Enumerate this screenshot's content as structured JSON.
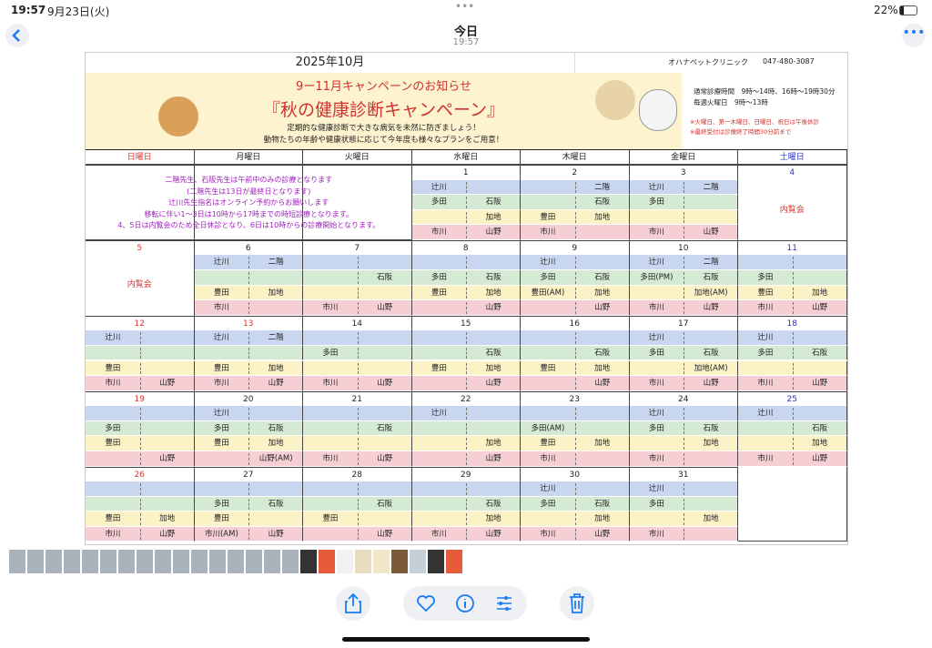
{
  "status_bar": {
    "time": "19:57",
    "date": "9月23日(火)",
    "battery": "22%"
  },
  "header": {
    "title": "今日",
    "time": "19:57"
  },
  "calendar": {
    "month": "2025年10月",
    "clinic": "オハナペットクリニック",
    "phone": "047-480-3087",
    "banner": {
      "headline": "9ー11月キャンペーンのお知らせ",
      "title": "『秋の健康診断キャンペーン』",
      "lines": [
        "定期的な健康診断で大きな病気を未然に防ぎましょう！",
        "動物たちの年齢や健康状態に応じて今年度も様々なプランをご用意！"
      ]
    },
    "hours": [
      "通常診療時間　9時〜14時、16時〜19時30分",
      "毎週火曜日　9時〜13時"
    ],
    "hour_notes": [
      "※火曜日、第一木曜日、日曜日、祝日は午後休診",
      "※最終受付は診療終了時間30分前まで"
    ],
    "weekdays": [
      "日曜日",
      "月曜日",
      "火曜日",
      "水曜日",
      "木曜日",
      "金曜日",
      "土曜日"
    ],
    "weekday_colors": [
      "#e0302c",
      "#222222",
      "#222222",
      "#222222",
      "#222222",
      "#222222",
      "#2a33c8"
    ],
    "slot_colors": [
      "#c8d6f0",
      "#d4ead2",
      "#fbf2c6",
      "#f5cfd3"
    ],
    "notice": [
      "二階先生、石阪先生は午前中のみの診療となります",
      "(二階先生は13日が最終日となります)",
      "辻川先生指名はオンライン予約からお願いします",
      "移転に伴い1〜3日は10時から17時までの時短診療となります。",
      "4、5日は内覧会のため全日休診となり、6日は10時からの診療開始となります。"
    ],
    "weeks": [
      [
        null,
        null,
        null,
        {
          "date": "1",
          "rows": [
            [
              "辻川",
              null
            ],
            [
              "多田",
              "石阪"
            ],
            [
              null,
              "加地"
            ],
            [
              "市川",
              "山野"
            ]
          ]
        },
        {
          "date": "2",
          "rows": [
            [
              null,
              "二階"
            ],
            [
              null,
              "石阪"
            ],
            [
              "豊田",
              "加地"
            ],
            [
              "市川",
              null
            ]
          ]
        },
        {
          "date": "3",
          "rows": [
            [
              "辻川",
              "二階"
            ],
            [
              "多田",
              null
            ],
            [
              null,
              null
            ],
            [
              "市川",
              "山野"
            ]
          ]
        },
        {
          "date": "4",
          "note": "内覧会"
        }
      ],
      [
        {
          "date": "5",
          "note": "内覧会"
        },
        {
          "date": "6",
          "rows": [
            [
              "辻川",
              "二階"
            ],
            [
              null,
              null
            ],
            [
              "豊田",
              "加地"
            ],
            [
              "市川",
              null
            ]
          ]
        },
        {
          "date": "7",
          "rows": [
            [
              null,
              null
            ],
            [
              null,
              "石阪"
            ],
            [
              null,
              null
            ],
            [
              "市川",
              "山野"
            ]
          ]
        },
        {
          "date": "8",
          "rows": [
            [
              null,
              null
            ],
            [
              "多田",
              "石阪"
            ],
            [
              "豊田",
              "加地"
            ],
            [
              null,
              "山野"
            ]
          ]
        },
        {
          "date": "9",
          "rows": [
            [
              "辻川",
              null
            ],
            [
              "多田",
              "石阪"
            ],
            [
              "豊田(AM)",
              "加地"
            ],
            [
              null,
              "山野"
            ]
          ]
        },
        {
          "date": "10",
          "rows": [
            [
              "辻川",
              "二階"
            ],
            [
              "多田(PM)",
              "石阪"
            ],
            [
              null,
              "加地(AM)"
            ],
            [
              "市川",
              "山野"
            ]
          ]
        },
        {
          "date": "11",
          "rows": [
            [
              null,
              null
            ],
            [
              "多田",
              null
            ],
            [
              "豊田",
              "加地"
            ],
            [
              "市川",
              "山野"
            ]
          ]
        }
      ],
      [
        {
          "date": "12",
          "rows": [
            [
              "辻川",
              null
            ],
            [
              null,
              null
            ],
            [
              "豊田",
              null
            ],
            [
              "市川",
              "山野"
            ]
          ]
        },
        {
          "date": "13",
          "holiday": true,
          "rows": [
            [
              "辻川",
              "二階"
            ],
            [
              null,
              null
            ],
            [
              "豊田",
              "加地"
            ],
            [
              "市川",
              "山野"
            ]
          ]
        },
        {
          "date": "14",
          "rows": [
            [
              null,
              null
            ],
            [
              "多田",
              null
            ],
            [
              null,
              null
            ],
            [
              "市川",
              "山野"
            ]
          ]
        },
        {
          "date": "15",
          "rows": [
            [
              null,
              null
            ],
            [
              null,
              "石阪"
            ],
            [
              "豊田",
              "加地"
            ],
            [
              null,
              "山野"
            ]
          ]
        },
        {
          "date": "16",
          "rows": [
            [
              null,
              null
            ],
            [
              null,
              "石阪"
            ],
            [
              "豊田",
              "加地"
            ],
            [
              null,
              "山野"
            ]
          ]
        },
        {
          "date": "17",
          "rows": [
            [
              "辻川",
              null
            ],
            [
              "多田",
              "石阪"
            ],
            [
              null,
              "加地(AM)"
            ],
            [
              "市川",
              "山野"
            ]
          ]
        },
        {
          "date": "18",
          "rows": [
            [
              "辻川",
              null
            ],
            [
              "多田",
              "石阪"
            ],
            [
              null,
              null
            ],
            [
              "市川",
              "山野"
            ]
          ]
        }
      ],
      [
        {
          "date": "19",
          "rows": [
            [
              null,
              null
            ],
            [
              "多田",
              null
            ],
            [
              "豊田",
              null
            ],
            [
              null,
              "山野"
            ]
          ]
        },
        {
          "date": "20",
          "rows": [
            [
              "辻川",
              null
            ],
            [
              "多田",
              "石阪"
            ],
            [
              "豊田",
              "加地"
            ],
            [
              null,
              "山野(AM)"
            ]
          ]
        },
        {
          "date": "21",
          "rows": [
            [
              null,
              null
            ],
            [
              null,
              "石阪"
            ],
            [
              null,
              null
            ],
            [
              "市川",
              "山野"
            ]
          ]
        },
        {
          "date": "22",
          "rows": [
            [
              "辻川",
              null
            ],
            [
              null,
              null
            ],
            [
              null,
              "加地"
            ],
            [
              null,
              "山野"
            ]
          ]
        },
        {
          "date": "23",
          "rows": [
            [
              null,
              null
            ],
            [
              "多田(AM)",
              null
            ],
            [
              "豊田",
              "加地"
            ],
            [
              "市川",
              null
            ]
          ]
        },
        {
          "date": "24",
          "rows": [
            [
              "辻川",
              null
            ],
            [
              "多田",
              "石阪"
            ],
            [
              null,
              "加地"
            ],
            [
              "市川",
              null
            ]
          ]
        },
        {
          "date": "25",
          "rows": [
            [
              "辻川",
              null
            ],
            [
              null,
              "石阪"
            ],
            [
              null,
              "加地"
            ],
            [
              "市川",
              "山野"
            ]
          ]
        }
      ],
      [
        {
          "date": "26",
          "rows": [
            [
              null,
              null
            ],
            [
              null,
              null
            ],
            [
              "豊田",
              "加地"
            ],
            [
              "市川",
              "山野"
            ]
          ]
        },
        {
          "date": "27",
          "rows": [
            [
              null,
              null
            ],
            [
              "多田",
              "石阪"
            ],
            [
              "豊田",
              null
            ],
            [
              "市川(AM)",
              "山野"
            ]
          ]
        },
        {
          "date": "28",
          "rows": [
            [
              null,
              null
            ],
            [
              null,
              "石阪"
            ],
            [
              "豊田",
              null
            ],
            [
              null,
              "山野"
            ]
          ]
        },
        {
          "date": "29",
          "rows": [
            [
              null,
              null
            ],
            [
              null,
              "石阪"
            ],
            [
              null,
              "加地"
            ],
            [
              "市川",
              "山野"
            ]
          ]
        },
        {
          "date": "30",
          "rows": [
            [
              "辻川",
              null
            ],
            [
              "多田",
              "石阪"
            ],
            [
              null,
              "加地"
            ],
            [
              "市川",
              "山野"
            ]
          ]
        },
        {
          "date": "31",
          "rows": [
            [
              "辻川",
              null
            ],
            [
              "多田",
              null
            ],
            [
              null,
              "加地"
            ],
            [
              "市川",
              null
            ]
          ]
        },
        null
      ]
    ]
  }
}
